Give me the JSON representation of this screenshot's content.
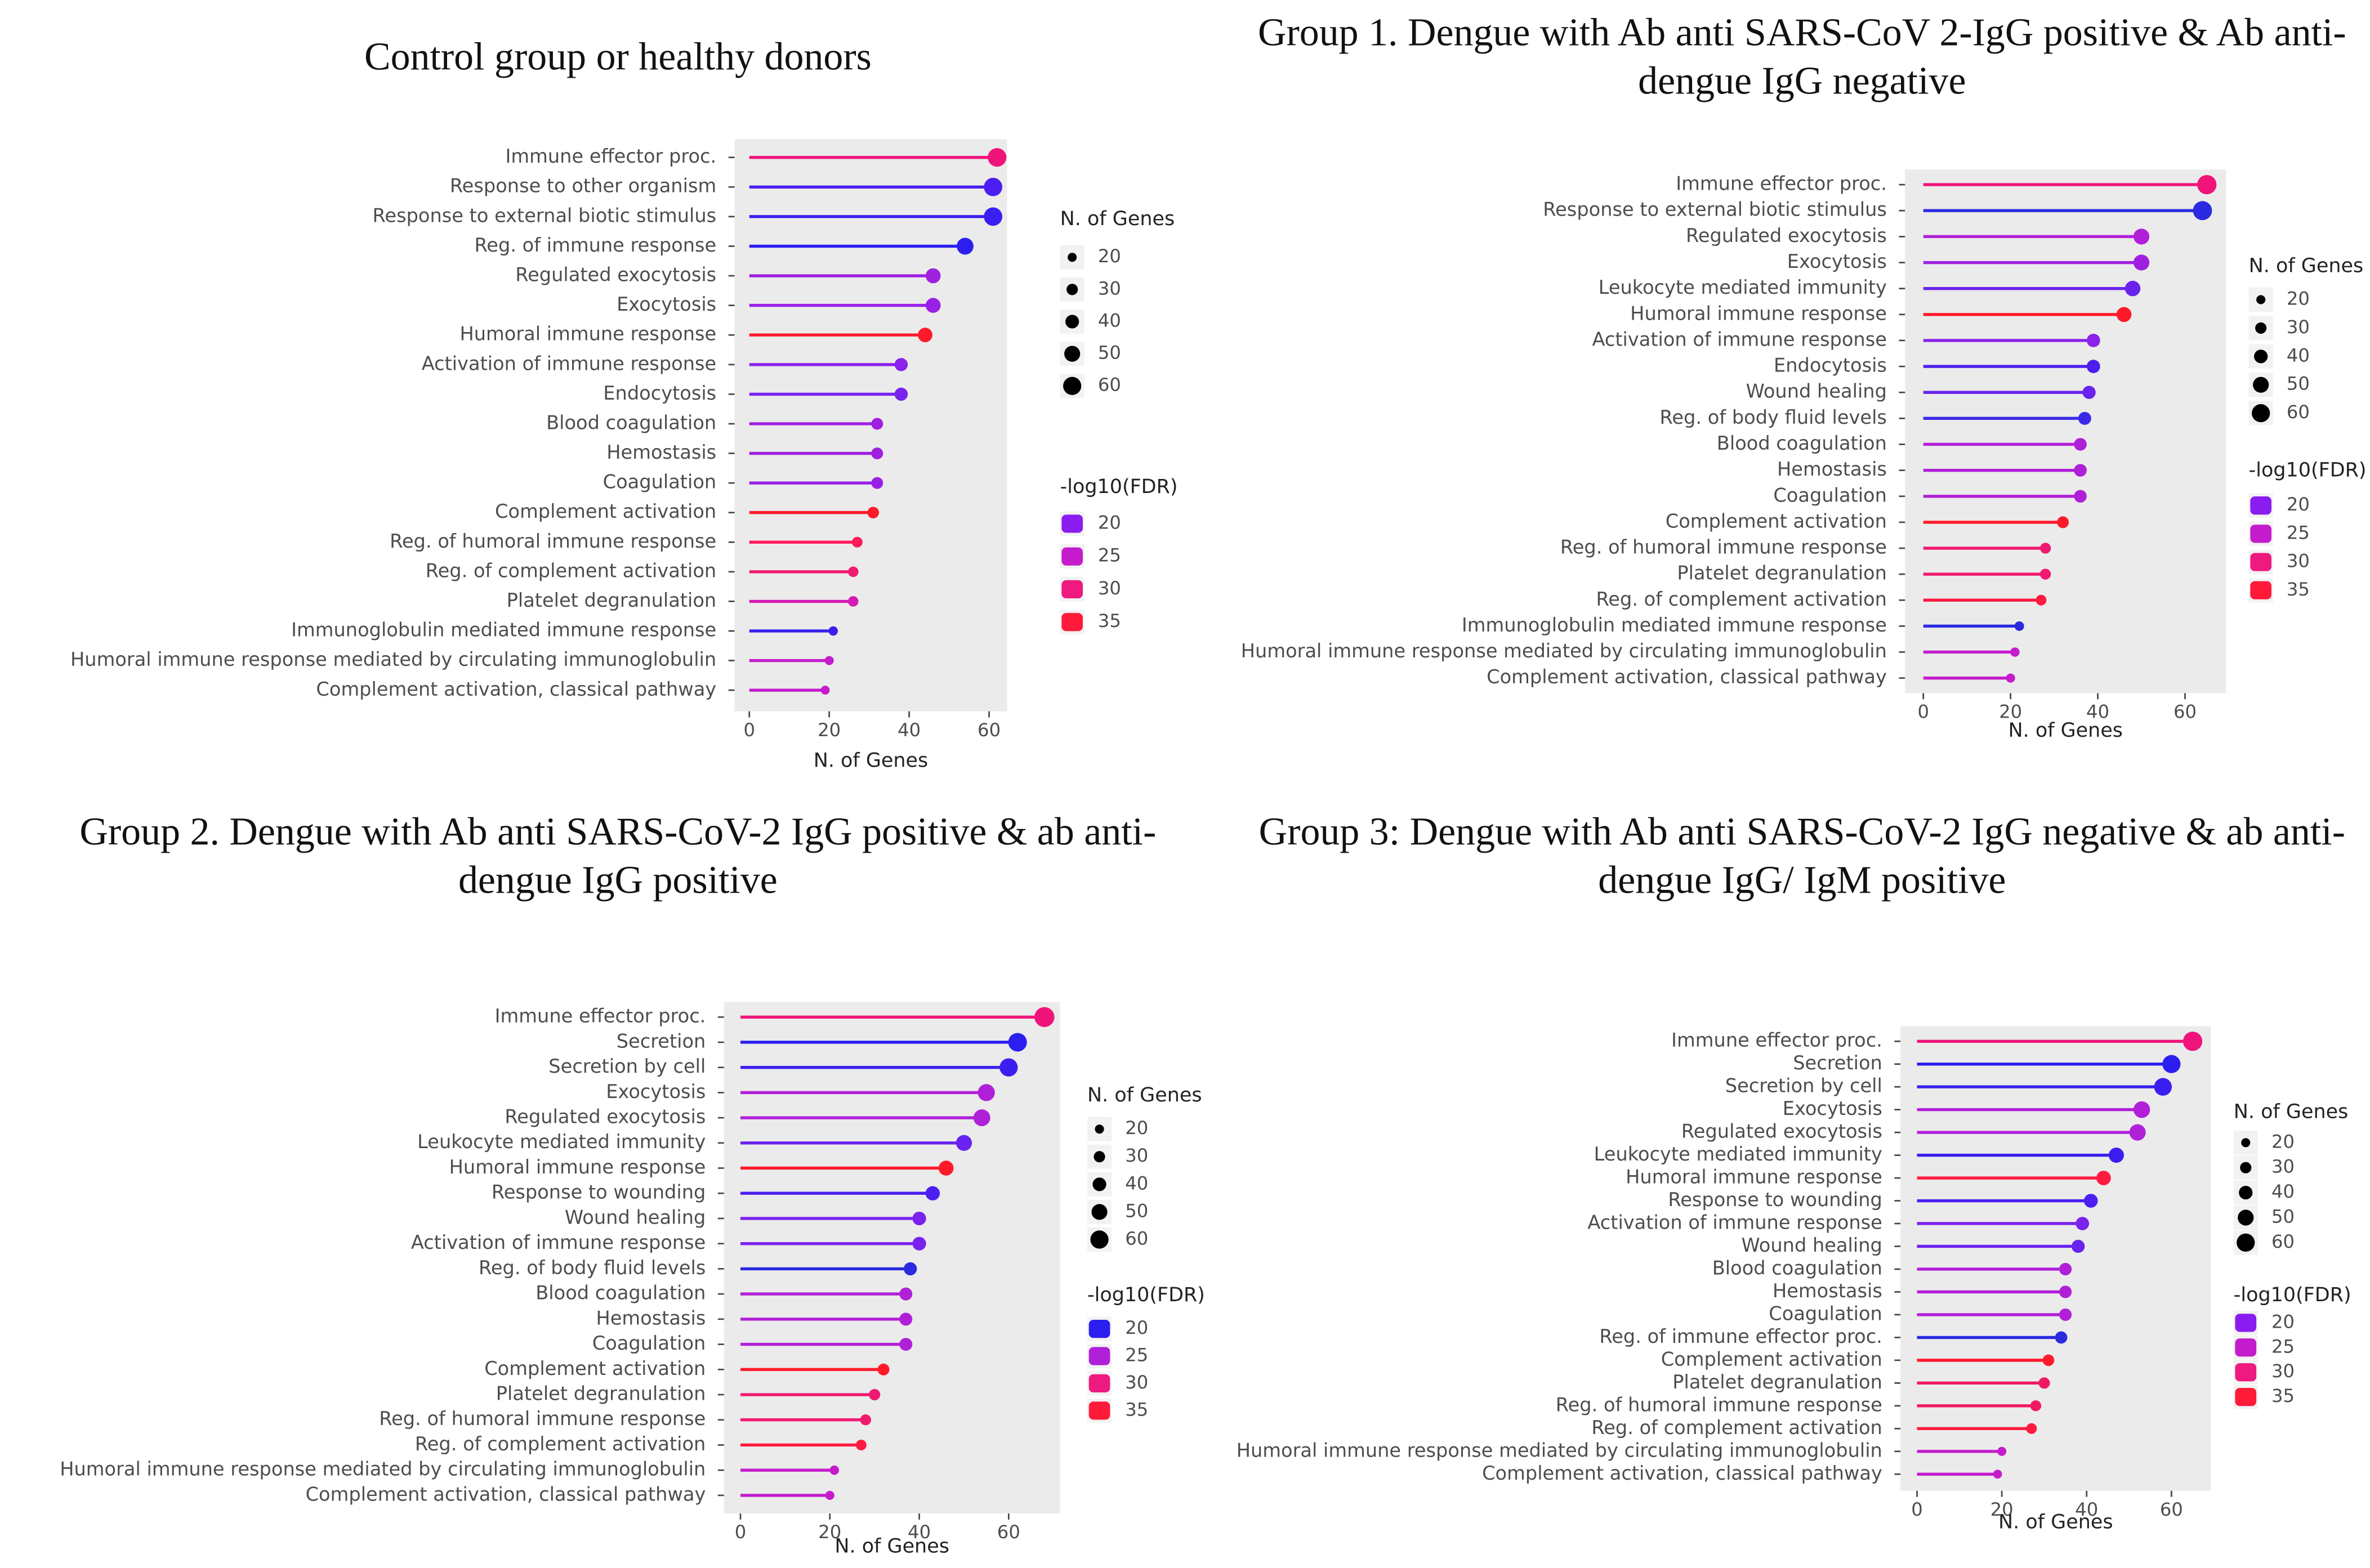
{
  "chart_data": [
    {
      "type": "lollipop",
      "title": "Control group or healthy donors",
      "xlabel": "N. of Genes",
      "categories": [
        "Immune effector proc.",
        "Response to other organism",
        "Response to external biotic stimulus",
        "Reg. of immune response",
        "Regulated exocytosis",
        "Exocytosis",
        "Humoral immune response",
        "Activation of immune response",
        "Endocytosis",
        "Blood coagulation",
        "Hemostasis",
        "Coagulation",
        "Complement activation",
        "Reg. of humoral immune response",
        "Reg. of complement activation",
        "Platelet degranulation",
        "Immunoglobulin mediated immune response",
        "Humoral immune response mediated by circulating immunoglobulin",
        "Complement activation, classical pathway"
      ],
      "values": [
        62,
        61,
        61,
        54,
        46,
        46,
        44,
        38,
        38,
        32,
        32,
        32,
        31,
        27,
        26,
        26,
        21,
        20,
        19
      ],
      "colors": [
        "#f0147a",
        "#4a1ff0",
        "#3a1ff0",
        "#2b1ff0",
        "#a020e0",
        "#9a20e6",
        "#ff1a2a",
        "#8a22ea",
        "#7a22ee",
        "#a020e0",
        "#a020e0",
        "#9a20e6",
        "#ff1a2a",
        "#ff1a5a",
        "#f01a70",
        "#d41ab4",
        "#3a1ff0",
        "#c41ccc",
        "#c41ccc"
      ],
      "xlim": [
        -3.7,
        64.5
      ],
      "xticks": [
        0,
        20,
        40,
        60
      ],
      "size_legend": {
        "title": "N. of Genes",
        "values": [
          20,
          30,
          40,
          50,
          60
        ]
      },
      "color_legend": {
        "title": "-log10(FDR)",
        "values": [
          20,
          25,
          30,
          35
        ],
        "colors": [
          "#8a1cf0",
          "#c41ccc",
          "#ee1a80",
          "#ff1a3a"
        ]
      }
    },
    {
      "type": "lollipop",
      "title": "Group 1. Dengue with Ab anti SARS-CoV 2-IgG positive & Ab anti-dengue IgG negative",
      "xlabel": "N. of Genes",
      "categories": [
        "Immune effector proc.",
        "Response to external biotic stimulus",
        "Regulated exocytosis",
        "Exocytosis",
        "Leukocyte mediated immunity",
        "Humoral immune response",
        "Activation of immune response",
        "Endocytosis",
        "Wound healing",
        "Reg. of body fluid levels",
        "Blood coagulation",
        "Hemostasis",
        "Coagulation",
        "Complement activation",
        "Reg. of humoral immune response",
        "Platelet degranulation",
        "Reg. of complement activation",
        "Immunoglobulin mediated immune response",
        "Humoral immune response mediated by circulating immunoglobulin",
        "Complement activation, classical pathway"
      ],
      "values": [
        65,
        64,
        50,
        50,
        48,
        46,
        39,
        39,
        38,
        37,
        36,
        36,
        36,
        32,
        28,
        28,
        27,
        22,
        21,
        20
      ],
      "colors": [
        "#f0147a",
        "#2b2ae0",
        "#b020d8",
        "#a020e0",
        "#6a22ee",
        "#ff1a2a",
        "#8a22ea",
        "#4a1ff0",
        "#6a22ee",
        "#3a2ae8",
        "#b020d8",
        "#b020d8",
        "#b020d8",
        "#ff1a2a",
        "#f01a70",
        "#f01a70",
        "#ff1a40",
        "#2b2ae0",
        "#c41ccc",
        "#c41ccc"
      ],
      "xlim": [
        -4.2,
        69.4
      ],
      "xticks": [
        0,
        20,
        40,
        60
      ],
      "size_legend": {
        "title": "N. of Genes",
        "values": [
          20,
          30,
          40,
          50,
          60
        ]
      },
      "color_legend": {
        "title": "-log10(FDR)",
        "values": [
          20,
          25,
          30,
          35
        ],
        "colors": [
          "#8a1cf0",
          "#c41ccc",
          "#ee1a80",
          "#ff1a3a"
        ]
      }
    },
    {
      "type": "lollipop",
      "title": "Group 2. Dengue with Ab anti SARS-CoV-2 IgG positive & ab anti-dengue IgG positive",
      "xlabel": "N. of Genes",
      "categories": [
        "Immune effector proc.",
        "Secretion",
        "Secretion by cell",
        "Exocytosis",
        "Regulated exocytosis",
        "Leukocyte mediated immunity",
        "Humoral immune response",
        "Response to wounding",
        "Wound healing",
        "Activation of immune response",
        "Reg. of body fluid levels",
        "Blood coagulation",
        "Hemostasis",
        "Coagulation",
        "Complement activation",
        "Platelet degranulation",
        "Reg. of humoral immune response",
        "Reg. of complement activation",
        "Humoral immune response mediated by circulating immunoglobulin",
        "Complement activation, classical pathway"
      ],
      "values": [
        68,
        62,
        60,
        55,
        54,
        50,
        46,
        43,
        40,
        40,
        38,
        37,
        37,
        37,
        32,
        30,
        28,
        27,
        21,
        20
      ],
      "colors": [
        "#f0147a",
        "#2b1ff0",
        "#3a1ff0",
        "#b020d8",
        "#b020d8",
        "#6a22ee",
        "#ff1a2a",
        "#4a1ff0",
        "#7a22ee",
        "#7a22ee",
        "#2b2ae0",
        "#b020d8",
        "#b020d8",
        "#b020d8",
        "#ff1a2a",
        "#f01a70",
        "#f01a70",
        "#ff1a40",
        "#c41ccc",
        "#c41ccc"
      ],
      "xlim": [
        -3.7,
        71.5
      ],
      "xticks": [
        0,
        20,
        40,
        60
      ],
      "size_legend": {
        "title": "N. of Genes",
        "values": [
          20,
          30,
          40,
          50,
          60
        ]
      },
      "color_legend": {
        "title": "-log10(FDR)",
        "values": [
          20,
          25,
          30,
          35
        ],
        "colors": [
          "#2b1ff0",
          "#b020d8",
          "#ee1a80",
          "#ff1a3a"
        ]
      }
    },
    {
      "type": "lollipop",
      "title": "Group 3: Dengue with Ab anti SARS-CoV-2 IgG negative & ab anti-dengue IgG/ IgM positive",
      "xlabel": "N. of Genes",
      "categories": [
        "Immune effector proc.",
        "Secretion",
        "Secretion by cell",
        "Exocytosis",
        "Regulated exocytosis",
        "Leukocyte mediated immunity",
        "Humoral immune response",
        "Response to wounding",
        "Activation of immune response",
        "Wound healing",
        "Blood coagulation",
        "Hemostasis",
        "Coagulation",
        "Reg. of immune effector proc.",
        "Complement activation",
        "Platelet degranulation",
        "Reg. of humoral immune response",
        "Reg. of complement activation",
        "Humoral immune response mediated by circulating immunoglobulin",
        "Complement activation, classical pathway"
      ],
      "values": [
        65,
        60,
        58,
        53,
        52,
        47,
        44,
        41,
        39,
        38,
        35,
        35,
        35,
        34,
        31,
        30,
        28,
        27,
        20,
        19
      ],
      "colors": [
        "#f0147a",
        "#2b1ff0",
        "#3a1ff0",
        "#b020d8",
        "#b020d8",
        "#3a1ff0",
        "#ff1a40",
        "#4a1ff0",
        "#7a22ee",
        "#6a22ee",
        "#b020d8",
        "#b020d8",
        "#b020d8",
        "#2b2ae0",
        "#ff1a2a",
        "#f01a60",
        "#f01a60",
        "#ff1a40",
        "#c41ccc",
        "#c41ccc"
      ],
      "xlim": [
        -3.9,
        69.3
      ],
      "xticks": [
        0,
        20,
        40,
        60
      ],
      "size_legend": {
        "title": "N. of Genes",
        "values": [
          20,
          30,
          40,
          50,
          60
        ]
      },
      "color_legend": {
        "title": "-log10(FDR)",
        "values": [
          20,
          25,
          30,
          35
        ],
        "colors": [
          "#8a1cf0",
          "#c41ccc",
          "#ee1a80",
          "#ff1a3a"
        ]
      }
    }
  ]
}
